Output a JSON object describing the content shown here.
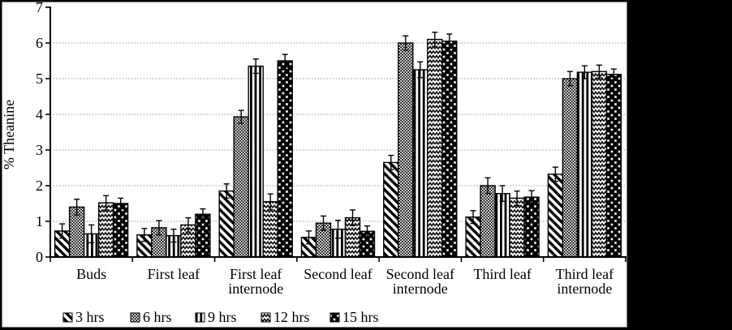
{
  "figure": {
    "background": "#ffffff",
    "frame_color": "#000000",
    "axis_color": "#000000",
    "gridline_color": "#9a9a9a",
    "bar_ink_color": "#000000",
    "bar_paper_color": "#ffffff"
  },
  "chart_data": {
    "type": "bar",
    "title": "",
    "xlabel": "",
    "ylabel": "% Theanine",
    "ylim": [
      0,
      7
    ],
    "yticks": [
      0,
      1,
      2,
      3,
      4,
      5,
      6,
      7
    ],
    "grid": "horizontal dotted gridlines at 1-6",
    "legend_position": "bottom-left, horizontal row",
    "error_bars": "plus-minus with caps",
    "categories": [
      "Buds",
      "First leaf",
      "First leaf internode",
      "Second leaf",
      "Second leaf internode",
      "Third leaf",
      "Third leaf internode"
    ],
    "categories_lines": [
      [
        "Buds"
      ],
      [
        "First leaf"
      ],
      [
        "First leaf",
        "internode"
      ],
      [
        "Second leaf"
      ],
      [
        "Second leaf",
        "internode"
      ],
      [
        "Third leaf"
      ],
      [
        "Third leaf",
        "internode"
      ]
    ],
    "series": [
      {
        "name": "3 hrs",
        "pattern": "diagonal-stripes",
        "values": [
          0.73,
          0.62,
          1.85,
          0.55,
          2.65,
          1.12,
          2.32
        ],
        "errors": [
          0.2,
          0.18,
          0.2,
          0.18,
          0.2,
          0.18,
          0.2
        ]
      },
      {
        "name": "6 hrs",
        "pattern": "fine-check",
        "values": [
          1.4,
          0.82,
          3.93,
          0.95,
          6.0,
          2.0,
          5.0
        ],
        "errors": [
          0.22,
          0.2,
          0.18,
          0.2,
          0.2,
          0.22,
          0.2
        ]
      },
      {
        "name": "9 hrs",
        "pattern": "vertical-stripes",
        "values": [
          0.65,
          0.6,
          5.35,
          0.78,
          5.25,
          1.78,
          5.18
        ],
        "errors": [
          0.25,
          0.18,
          0.2,
          0.25,
          0.22,
          0.22,
          0.18
        ]
      },
      {
        "name": "12 hrs",
        "pattern": "zigzag",
        "values": [
          1.52,
          0.9,
          1.55,
          1.1,
          6.1,
          1.65,
          5.2
        ],
        "errors": [
          0.2,
          0.2,
          0.22,
          0.22,
          0.2,
          0.2,
          0.18
        ]
      },
      {
        "name": "15 hrs",
        "pattern": "dot-grid",
        "values": [
          1.5,
          1.2,
          5.5,
          0.72,
          6.05,
          1.68,
          5.12
        ],
        "errors": [
          0.15,
          0.15,
          0.18,
          0.15,
          0.2,
          0.18,
          0.15
        ]
      }
    ]
  }
}
